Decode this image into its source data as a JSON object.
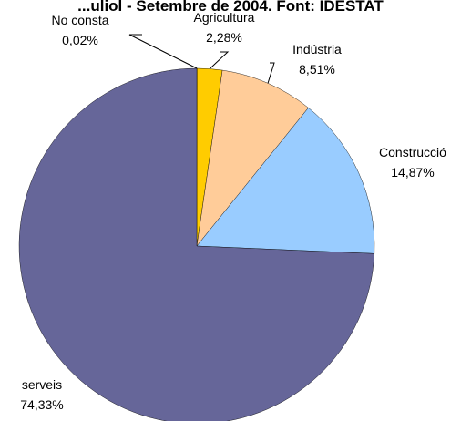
{
  "chart_data": {
    "type": "pie",
    "title": "...uliol - Setembre de 2004. Font: IDESTAT",
    "slices": [
      {
        "name": "No consta",
        "value": 0.02,
        "value_label": "0,02%",
        "color": "#0a0a5a"
      },
      {
        "name": "Agricultura",
        "value": 2.28,
        "value_label": "2,28%",
        "color": "#ffcc00"
      },
      {
        "name": "Indústria",
        "value": 8.51,
        "value_label": "8,51%",
        "color": "#ffcc99"
      },
      {
        "name": "Construcció",
        "value": 14.87,
        "value_label": "14,87%",
        "color": "#99ccff"
      },
      {
        "name": "serveis",
        "value": 74.33,
        "value_label": "74,33%",
        "color": "#666699"
      }
    ],
    "start_angle": "12 o'clock",
    "direction": "clockwise",
    "legend": "none"
  }
}
